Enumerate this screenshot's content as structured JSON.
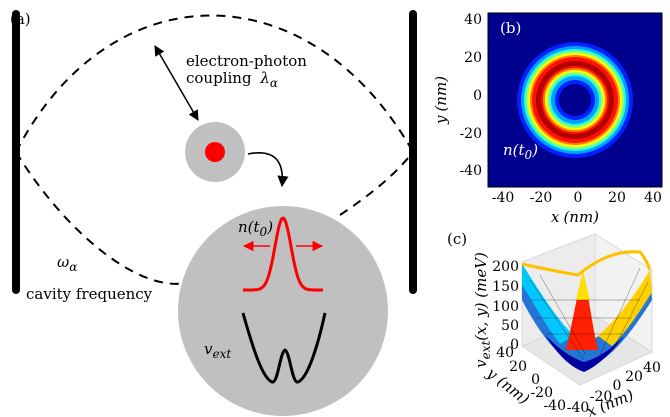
{
  "panel_a": {
    "label": "(a)",
    "coupling_line1": "electron-photon",
    "coupling_line2": "coupling",
    "coupling_symbol": "λ",
    "coupling_subscript": "α",
    "omega_symbol": "ω",
    "omega_subscript": "α",
    "cavity_label": "cavity frequency",
    "density_symbol": "n(t",
    "density_subscript": "0",
    "density_close": ")",
    "potential_symbol": "v",
    "potential_subscript": "ext",
    "colors": {
      "cavity_wall": "#000000",
      "density_curve": "#ff0000",
      "electron": "#ff0000",
      "disk": "#c0c0c0"
    }
  },
  "panel_b": {
    "label": "(b)",
    "x_ticks": [
      "-40",
      "-20",
      "0",
      "20",
      "40"
    ],
    "y_ticks": [
      "40",
      "20",
      "0",
      "-20",
      "-40"
    ],
    "xlabel_var": "x",
    "xlabel_unit": "(nm)",
    "ylabel_var": "y",
    "ylabel_unit": "(nm)",
    "annotation_symbol": "n(t",
    "annotation_subscript": "0",
    "annotation_close": ")"
  },
  "panel_c": {
    "label": "(c)",
    "z_ticks": [
      "200",
      "150",
      "100",
      "50",
      "0"
    ],
    "x_ticks": [
      "-40",
      "-20",
      "0",
      "20",
      "40"
    ],
    "y_ticks": [
      "-40",
      "-20",
      "0",
      "20",
      "40"
    ],
    "zlabel_main": "v",
    "zlabel_sub": "ext",
    "zlabel_rest": "(x, y) (meV)",
    "xlabel": "x (nm)",
    "ylabel": "y (nm)"
  },
  "chart_data": [
    {
      "type": "heatmap",
      "description_of_data": "ring-shaped electron density n(t0) in the x-y plane",
      "xlim": [
        -45,
        45
      ],
      "ylim": [
        -45,
        45
      ],
      "ring_radius": 24,
      "ring_width": 7,
      "colormap": "jet"
    },
    {
      "type": "surface",
      "xlim": [
        -40,
        40
      ],
      "ylim": [
        -40,
        40
      ],
      "zlim": [
        0,
        200
      ],
      "z_ticks": [
        0,
        50,
        100,
        150,
        200
      ],
      "colormap": "jet"
    }
  ]
}
